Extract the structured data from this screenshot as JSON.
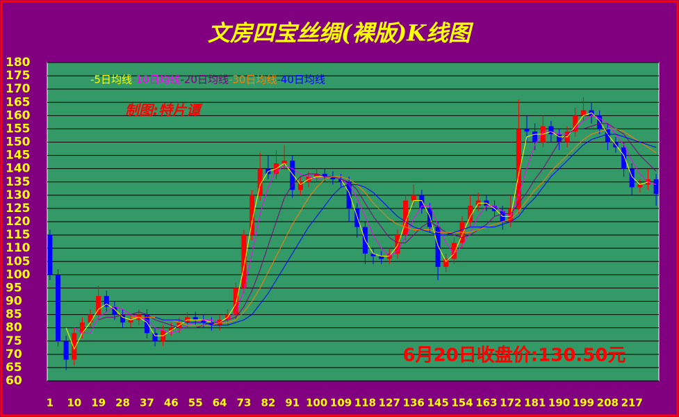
{
  "chart_data": {
    "type": "candlestick",
    "title": "文房四宝丝绸(裸版)K线图",
    "annotations": [
      "制图:特片谭",
      "6月20日收盘价:130.50元"
    ],
    "x": [
      1,
      4,
      7,
      10,
      13,
      16,
      19,
      22,
      25,
      28,
      31,
      34,
      37,
      40,
      43,
      46,
      49,
      52,
      55,
      58,
      61,
      64,
      67,
      70,
      73,
      76,
      79,
      82,
      85,
      88,
      91,
      94,
      97,
      100,
      103,
      106,
      109,
      112,
      115,
      118,
      121,
      124,
      127,
      130,
      133,
      136,
      139,
      142,
      145,
      148,
      151,
      154,
      157,
      160,
      163,
      166,
      169,
      172,
      175,
      178,
      181,
      184,
      187,
      190,
      193,
      196,
      199,
      202,
      205,
      208,
      211,
      214,
      217,
      220,
      223,
      226
    ],
    "open": [
      115,
      100,
      75,
      68,
      78,
      82,
      85,
      92,
      88,
      85,
      82,
      83,
      85,
      78,
      75,
      79,
      80,
      82,
      84,
      83,
      82,
      81,
      83,
      85,
      95,
      115,
      130,
      140,
      138,
      142,
      143,
      132,
      135,
      137,
      138,
      137,
      136,
      135,
      125,
      118,
      108,
      107,
      106,
      108,
      115,
      128,
      130,
      125,
      118,
      103,
      106,
      112,
      120,
      126,
      128,
      126,
      124,
      120,
      125,
      155,
      154,
      150,
      156,
      153,
      150,
      154,
      160,
      162,
      160,
      155,
      150,
      148,
      140,
      133,
      134,
      136
    ],
    "high": [
      117,
      102,
      77,
      80,
      84,
      87,
      96,
      94,
      90,
      87,
      85,
      87,
      87,
      80,
      81,
      82,
      84,
      86,
      86,
      85,
      84,
      85,
      87,
      97,
      117,
      132,
      146,
      145,
      147,
      149,
      145,
      137,
      139,
      140,
      140,
      139,
      138,
      137,
      127,
      120,
      110,
      109,
      110,
      117,
      130,
      134,
      132,
      127,
      120,
      108,
      114,
      122,
      130,
      131,
      130,
      128,
      126,
      130,
      166,
      160,
      157,
      160,
      158,
      155,
      156,
      163,
      167,
      165,
      162,
      157,
      152,
      150,
      142,
      136,
      140,
      138
    ],
    "low": [
      98,
      73,
      64,
      66,
      76,
      80,
      83,
      86,
      83,
      80,
      80,
      81,
      76,
      73,
      73,
      77,
      78,
      80,
      81,
      80,
      79,
      79,
      81,
      83,
      93,
      113,
      128,
      136,
      136,
      140,
      129,
      130,
      133,
      135,
      135,
      134,
      133,
      120,
      114,
      104,
      104,
      104,
      104,
      106,
      113,
      126,
      123,
      116,
      98,
      101,
      104,
      110,
      118,
      124,
      124,
      122,
      117,
      118,
      123,
      150,
      147,
      148,
      150,
      147,
      148,
      152,
      158,
      157,
      153,
      147,
      146,
      137,
      130,
      131,
      132,
      126
    ],
    "close": [
      100,
      75,
      68,
      78,
      82,
      85,
      92,
      88,
      85,
      82,
      83,
      85,
      78,
      75,
      79,
      80,
      82,
      84,
      83,
      82,
      81,
      83,
      85,
      95,
      115,
      130,
      140,
      138,
      142,
      143,
      132,
      135,
      137,
      138,
      137,
      136,
      135,
      125,
      118,
      108,
      107,
      106,
      108,
      115,
      128,
      130,
      125,
      118,
      103,
      106,
      112,
      120,
      126,
      128,
      126,
      124,
      120,
      125,
      155,
      154,
      150,
      156,
      153,
      150,
      154,
      160,
      162,
      160,
      155,
      150,
      148,
      140,
      133,
      134,
      136,
      130.5
    ],
    "up_color": "#ff0000",
    "down_color": "#0000ff",
    "series": [
      {
        "name": "-5日均线",
        "color": "#ffff00",
        "values": [
          null,
          null,
          80,
          72,
          78,
          82,
          87,
          89,
          87,
          84,
          83,
          84,
          82,
          77,
          77,
          79,
          81,
          83,
          83,
          83,
          82,
          82,
          84,
          89,
          103,
          120,
          134,
          139,
          140,
          142,
          138,
          134,
          136,
          137,
          137,
          137,
          136,
          131,
          122,
          113,
          108,
          107,
          107,
          111,
          120,
          128,
          128,
          122,
          111,
          105,
          108,
          115,
          122,
          127,
          127,
          125,
          122,
          122,
          138,
          152,
          153,
          153,
          154,
          152,
          152,
          156,
          160,
          161,
          158,
          153,
          149,
          145,
          137,
          134,
          135,
          134
        ]
      },
      {
        "name": "-10日均线",
        "color": "#ff00ff",
        "values": [
          null,
          null,
          null,
          80,
          78,
          78,
          84,
          86,
          88,
          87,
          85,
          84,
          83,
          80,
          79,
          78,
          79,
          81,
          82,
          83,
          83,
          82,
          83,
          86,
          94,
          108,
          123,
          133,
          139,
          141,
          140,
          138,
          137,
          136,
          137,
          137,
          136,
          134,
          129,
          122,
          115,
          110,
          107,
          109,
          114,
          121,
          126,
          126,
          119,
          112,
          108,
          111,
          116,
          122,
          126,
          126,
          124,
          122,
          130,
          140,
          149,
          154,
          154,
          153,
          153,
          155,
          158,
          160,
          159,
          157,
          153,
          149,
          143,
          138,
          135,
          134
        ]
      },
      {
        "name": "-20日均线",
        "color": "#800080",
        "values": [
          null,
          null,
          null,
          null,
          null,
          null,
          83,
          84,
          84,
          85,
          85,
          86,
          85,
          83,
          82,
          81,
          80,
          80,
          80,
          81,
          82,
          82,
          83,
          84,
          88,
          94,
          102,
          111,
          120,
          129,
          134,
          137,
          138,
          138,
          137,
          137,
          136,
          135,
          132,
          127,
          122,
          118,
          114,
          112,
          112,
          115,
          118,
          120,
          118,
          116,
          115,
          114,
          115,
          117,
          119,
          122,
          123,
          123,
          127,
          131,
          136,
          140,
          145,
          150,
          153,
          155,
          155,
          156,
          157,
          157,
          155,
          153,
          149,
          145,
          142,
          139
        ]
      },
      {
        "name": "-30日均线",
        "color": "#ff8000",
        "values": [
          null,
          null,
          null,
          null,
          null,
          null,
          null,
          null,
          null,
          null,
          84,
          84,
          84,
          84,
          83,
          83,
          82,
          81,
          81,
          81,
          81,
          82,
          82,
          83,
          86,
          90,
          95,
          101,
          107,
          113,
          119,
          124,
          129,
          133,
          136,
          137,
          137,
          136,
          134,
          131,
          127,
          124,
          121,
          119,
          118,
          117,
          117,
          117,
          116,
          116,
          116,
          116,
          116,
          117,
          118,
          119,
          120,
          121,
          124,
          128,
          132,
          135,
          139,
          142,
          145,
          148,
          151,
          153,
          154,
          155,
          155,
          154,
          152,
          150,
          148,
          146
        ]
      },
      {
        "name": "-40日均线",
        "color": "#0000ff",
        "values": [
          null,
          null,
          null,
          null,
          null,
          null,
          null,
          null,
          null,
          null,
          null,
          null,
          null,
          84,
          83,
          83,
          83,
          82,
          82,
          82,
          81,
          81,
          81,
          82,
          83,
          85,
          89,
          93,
          98,
          103,
          108,
          113,
          118,
          122,
          126,
          130,
          133,
          134,
          134,
          133,
          131,
          128,
          125,
          122,
          120,
          118,
          117,
          116,
          115,
          115,
          116,
          117,
          118,
          118,
          118,
          118,
          119,
          120,
          122,
          126,
          129,
          133,
          137,
          140,
          143,
          146,
          149,
          151,
          152,
          153,
          153,
          152,
          151,
          150,
          149,
          148
        ]
      }
    ],
    "xlim": [
      0,
      227
    ],
    "xticks": [
      1,
      10,
      19,
      28,
      37,
      46,
      55,
      64,
      73,
      82,
      91,
      100,
      109,
      118,
      127,
      136,
      145,
      154,
      163,
      172,
      181,
      190,
      199,
      208,
      217
    ],
    "ylim": [
      60,
      180
    ],
    "yticks": [
      60,
      65,
      70,
      75,
      80,
      85,
      90,
      95,
      100,
      105,
      110,
      115,
      120,
      125,
      130,
      135,
      140,
      145,
      150,
      155,
      160,
      165,
      170,
      175,
      180
    ],
    "grid": true
  }
}
